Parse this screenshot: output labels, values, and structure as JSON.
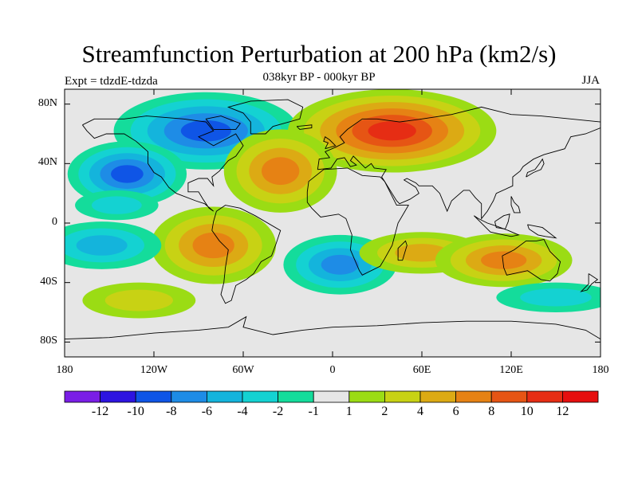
{
  "title": "Streamfunction Perturbation at 200 hPa (km2/s)",
  "left_label": "Expt = tdzdE-tdzda",
  "center_label": "038kyr BP - 000kyr BP",
  "right_label": "JJA",
  "map_data": {
    "type": "filled-contour map",
    "projection": "cylindrical equidistant",
    "lon_range": [
      -180,
      180
    ],
    "lat_range": [
      -90,
      90
    ],
    "y_ticks": [
      {
        "lat": 80,
        "label": "80N"
      },
      {
        "lat": 40,
        "label": "40N"
      },
      {
        "lat": 0,
        "label": "0"
      },
      {
        "lat": -40,
        "label": "40S"
      },
      {
        "lat": -80,
        "label": "80S"
      }
    ],
    "x_ticks": [
      {
        "lon": -180,
        "label": "180"
      },
      {
        "lon": -120,
        "label": "120W"
      },
      {
        "lon": -60,
        "label": "60W"
      },
      {
        "lon": 0,
        "label": "0"
      },
      {
        "lon": 60,
        "label": "60E"
      },
      {
        "lon": 120,
        "label": "120E"
      },
      {
        "lon": 180,
        "label": "180"
      }
    ],
    "background_color": "#e6e6e6",
    "anomalies": [
      {
        "name": "north-america-low",
        "lon": -85,
        "lat": 62,
        "min": -8
      },
      {
        "name": "northeast-pacific-low",
        "lon": -138,
        "lat": 33,
        "min": -8
      },
      {
        "name": "central-pacific-low",
        "lon": -145,
        "lat": 12,
        "min": -2
      },
      {
        "name": "eurasia-high",
        "lon": 40,
        "lat": 62,
        "max": 10
      },
      {
        "name": "north-atlantic-high",
        "lon": -35,
        "lat": 35,
        "max": 6
      },
      {
        "name": "south-america-high",
        "lon": -80,
        "lat": -15,
        "max": 6
      },
      {
        "name": "south-atlantic-low",
        "lon": 5,
        "lat": -28,
        "min": -6
      },
      {
        "name": "africa-south-high",
        "lon": 60,
        "lat": -20,
        "max": 4
      },
      {
        "name": "australia-high",
        "lon": 115,
        "lat": -25,
        "max": 6
      },
      {
        "name": "south-pacific-low",
        "lon": -155,
        "lat": -15,
        "min": -4
      },
      {
        "name": "southern-ocean-low",
        "lon": 150,
        "lat": -50,
        "min": -2
      },
      {
        "name": "southern-high",
        "lon": -130,
        "lat": -52,
        "max": 2
      }
    ]
  },
  "colorbar": {
    "colors": [
      "#7a1ee6",
      "#2d14e0",
      "#0f55e6",
      "#1e8ce6",
      "#14b4dc",
      "#14d2d2",
      "#14dc9b",
      "#e6e6e6",
      "#9bdc14",
      "#c8d214",
      "#dcaa14",
      "#e68214",
      "#e65514",
      "#e62d14",
      "#e60f0f"
    ],
    "tick_labels": [
      "-12",
      "-10",
      "-8",
      "-6",
      "-4",
      "-2",
      "-1",
      "1",
      "2",
      "4",
      "6",
      "8",
      "10",
      "12"
    ]
  }
}
